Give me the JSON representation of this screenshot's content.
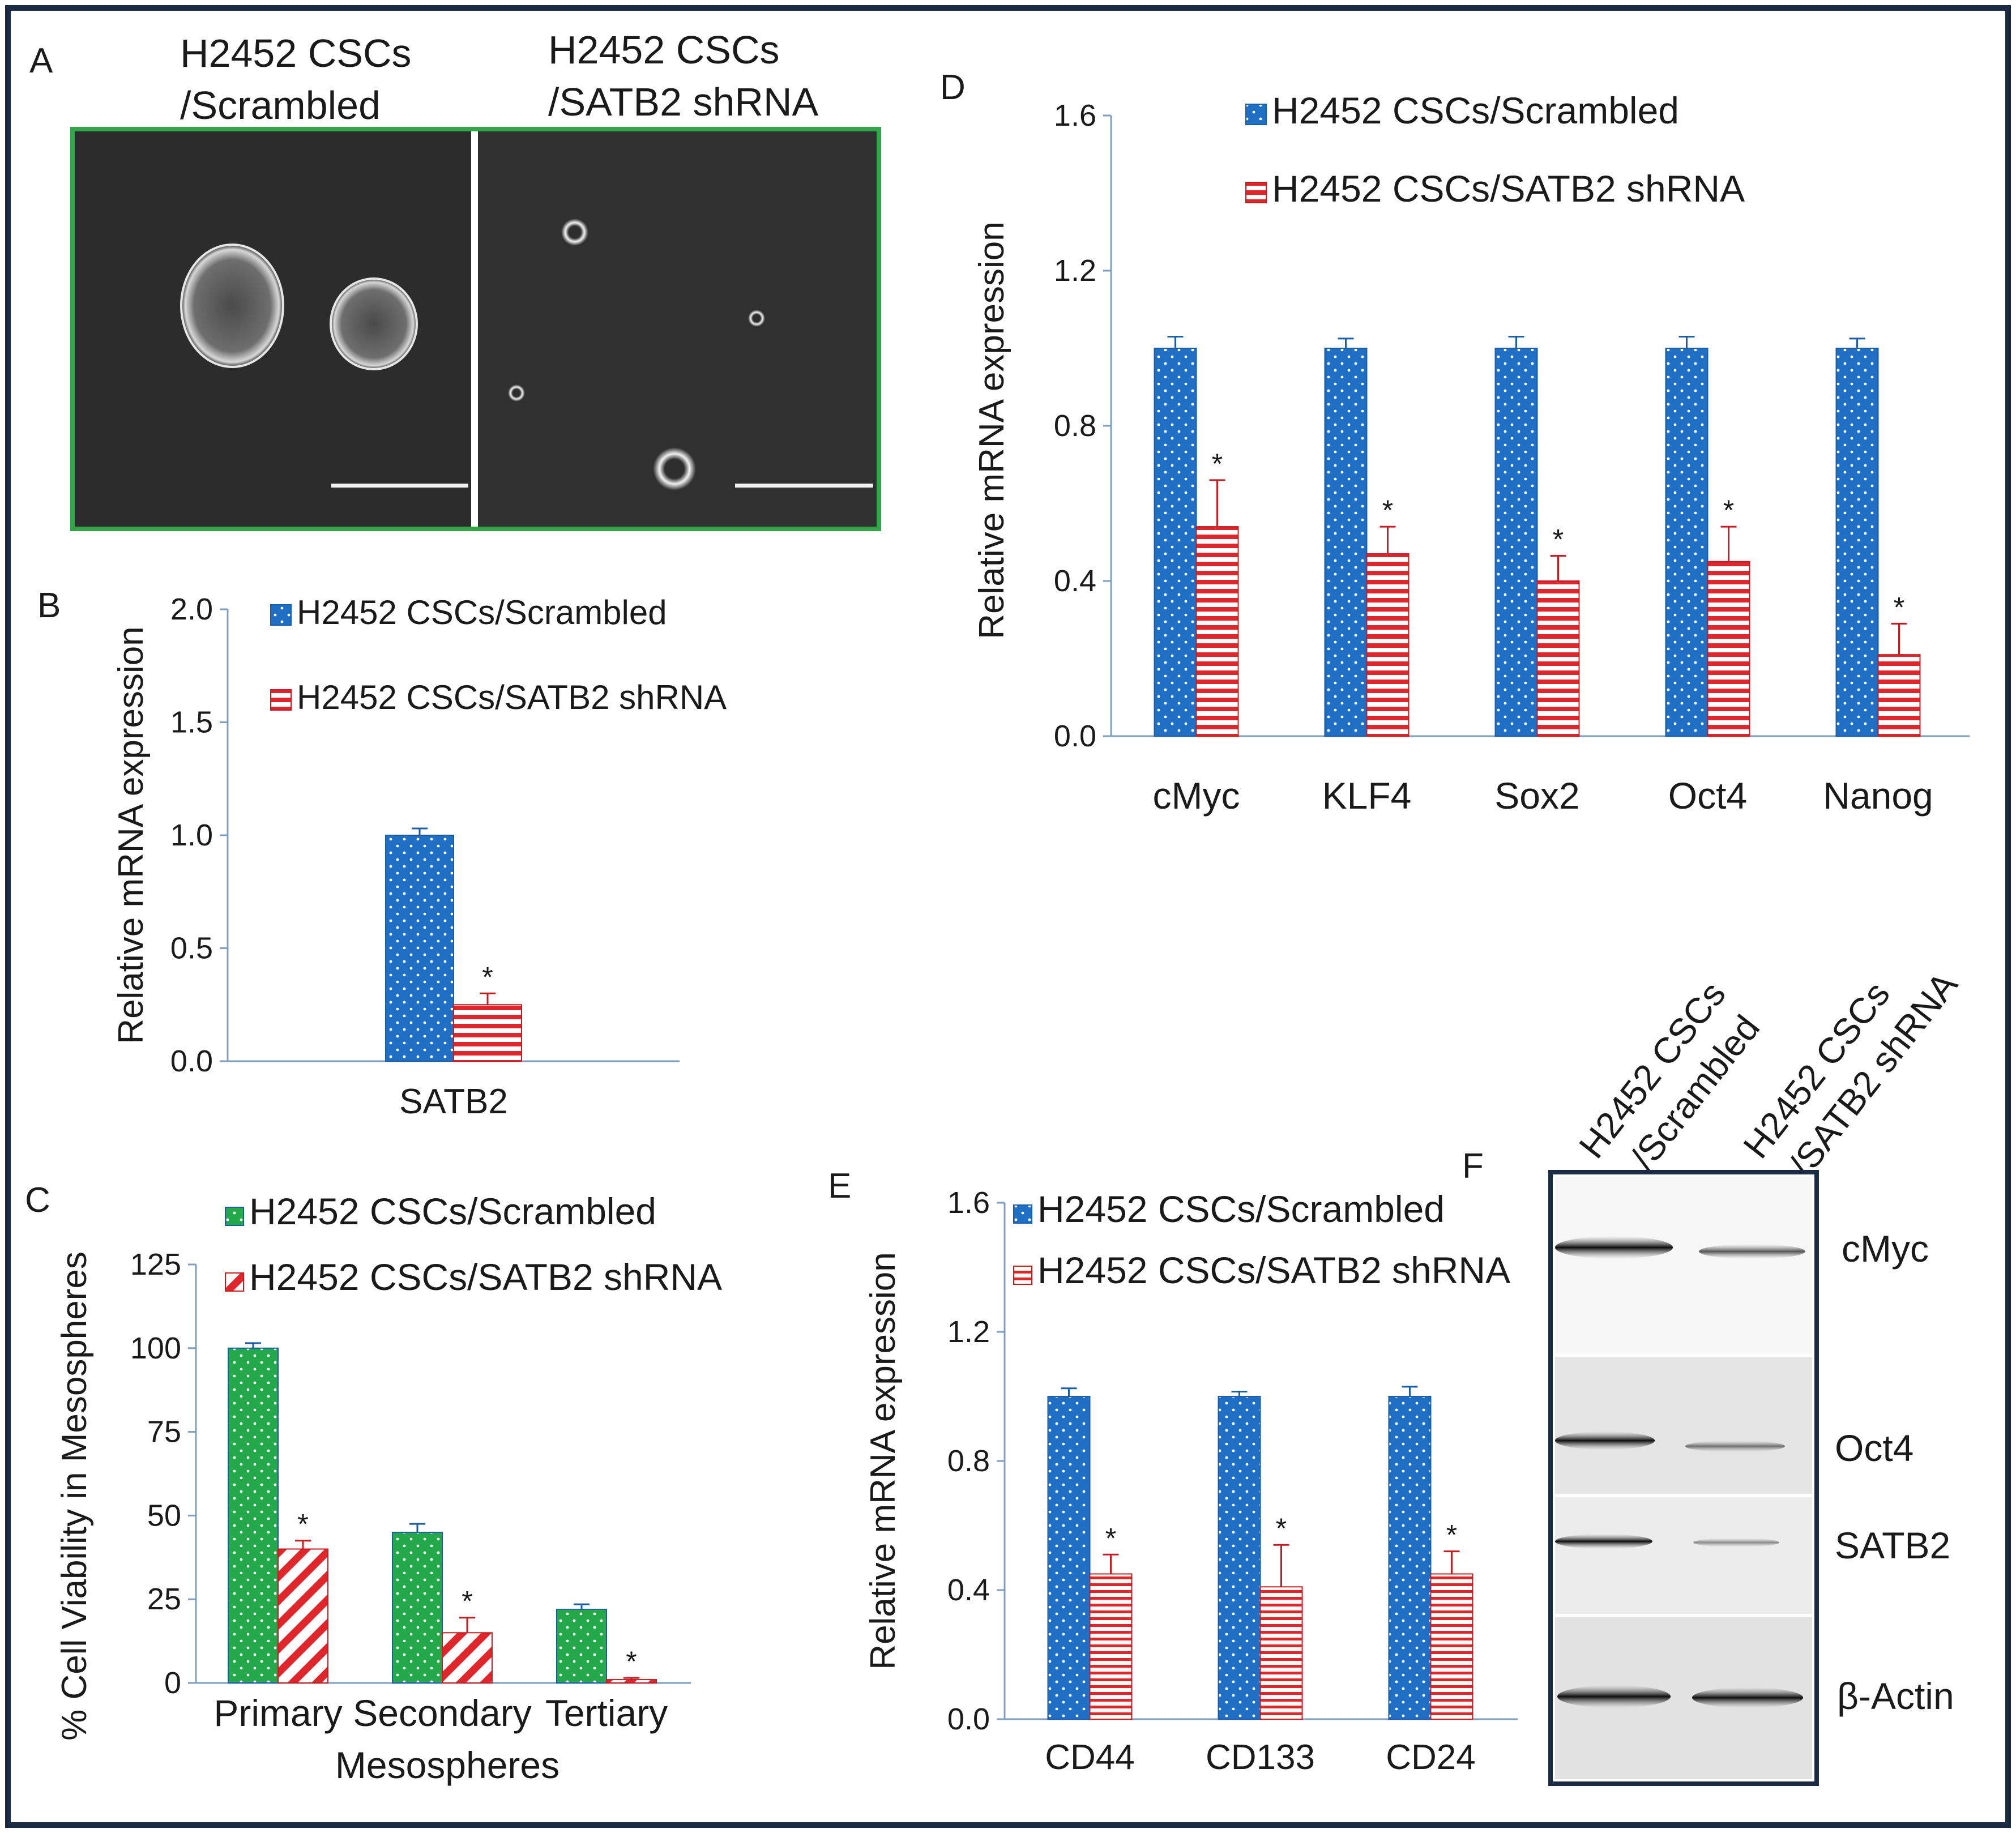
{
  "colors": {
    "scrambled": "#1f6fc5",
    "shrna": "#e0262a",
    "viability": "#23a84a",
    "frame": "#1b2b44",
    "micro_border": "#2fa84a",
    "blot_border": "#1b2b44"
  },
  "panel_labels": {
    "a": "A",
    "b": "B",
    "c": "C",
    "d": "D",
    "e": "E",
    "f": "F"
  },
  "panel_a": {
    "left_title_1": "H2452 CSCs",
    "left_title_2": "/Scrambled",
    "right_title_1": "H2452 CSCs",
    "right_title_2": "/SATB2 shRNA"
  },
  "panel_f": {
    "lane_1_line_1": "H2452 CSCs",
    "lane_1_line_2": "/Scrambled",
    "lane_2_line_1": "H2452 CSCs",
    "lane_2_line_2": "/SATB2 shRNA",
    "bands": [
      "cMyc",
      "Oct4",
      "SATB2",
      "β-Actin"
    ]
  },
  "chart_data": [
    {
      "id": "B",
      "type": "bar",
      "title": "",
      "xlabel": "",
      "ylabel": "Relative  mRNA  expression",
      "ylim": [
        0,
        2.0
      ],
      "yticks": [
        "0.0",
        "0.5",
        "1.0",
        "1.5",
        "2.0"
      ],
      "categories": [
        "SATB2"
      ],
      "series": [
        {
          "name": "H2452 CSCs/Scrambled",
          "values": [
            1.0
          ],
          "errors": [
            0.03
          ]
        },
        {
          "name": "H2452 CSCs/SATB2 shRNA",
          "values": [
            0.25
          ],
          "errors": [
            0.05
          ]
        }
      ],
      "significance": [
        "*"
      ],
      "legend": "top-left"
    },
    {
      "id": "C",
      "type": "bar",
      "title": "",
      "xlabel": "Mesospheres",
      "ylabel": "% Cell Viability in Mesospheres",
      "ylim": [
        0,
        125
      ],
      "yticks": [
        "0",
        "25",
        "50",
        "75",
        "100",
        "125"
      ],
      "categories": [
        "Primary",
        "Secondary",
        "Tertiary"
      ],
      "series": [
        {
          "name": "H2452 CSCs/Scrambled",
          "values": [
            100,
            45,
            22
          ],
          "errors": [
            1.5,
            2.5,
            1.5
          ]
        },
        {
          "name": "H2452 CSCs/SATB2 shRNA",
          "values": [
            40,
            15,
            1
          ],
          "errors": [
            2.5,
            4.5,
            0.5
          ]
        }
      ],
      "significance": [
        "*",
        "*",
        "*"
      ],
      "legend": "top"
    },
    {
      "id": "D",
      "type": "bar",
      "title": "",
      "xlabel": "",
      "ylabel": "Relative  mRNA  expression",
      "ylim": [
        0,
        1.6
      ],
      "yticks": [
        "0.0",
        "0.4",
        "0.8",
        "1.2",
        "1.6"
      ],
      "categories": [
        "cMyc",
        "KLF4",
        "Sox2",
        "Oct4",
        "Nanog"
      ],
      "series": [
        {
          "name": "H2452 CSCs/Scrambled",
          "values": [
            1.0,
            1.0,
            1.0,
            1.0,
            1.0
          ],
          "errors": [
            0.03,
            0.025,
            0.03,
            0.03,
            0.025
          ]
        },
        {
          "name": "H2452 CSCs/SATB2 shRNA",
          "values": [
            0.54,
            0.47,
            0.4,
            0.45,
            0.21
          ],
          "errors": [
            0.12,
            0.07,
            0.065,
            0.09,
            0.08
          ]
        }
      ],
      "significance": [
        "*",
        "*",
        "*",
        "*",
        "*"
      ],
      "legend": "top-center"
    },
    {
      "id": "E",
      "type": "bar",
      "title": "",
      "xlabel": "",
      "ylabel": "Relative  mRNA  expression",
      "ylim": [
        0,
        1.6
      ],
      "yticks": [
        "0.0",
        "0.4",
        "0.8",
        "1.2",
        "1.6"
      ],
      "categories": [
        "CD44",
        "CD133",
        "CD24"
      ],
      "series": [
        {
          "name": "H2452 CSCs/Scrambled",
          "values": [
            1.0,
            1.0,
            1.0
          ],
          "errors": [
            0.025,
            0.015,
            0.03
          ]
        },
        {
          "name": "H2452 CSCs/SATB2 shRNA",
          "values": [
            0.45,
            0.41,
            0.45
          ],
          "errors": [
            0.06,
            0.13,
            0.07
          ]
        }
      ],
      "significance": [
        "*",
        "*",
        "*"
      ],
      "legend": "top"
    }
  ]
}
